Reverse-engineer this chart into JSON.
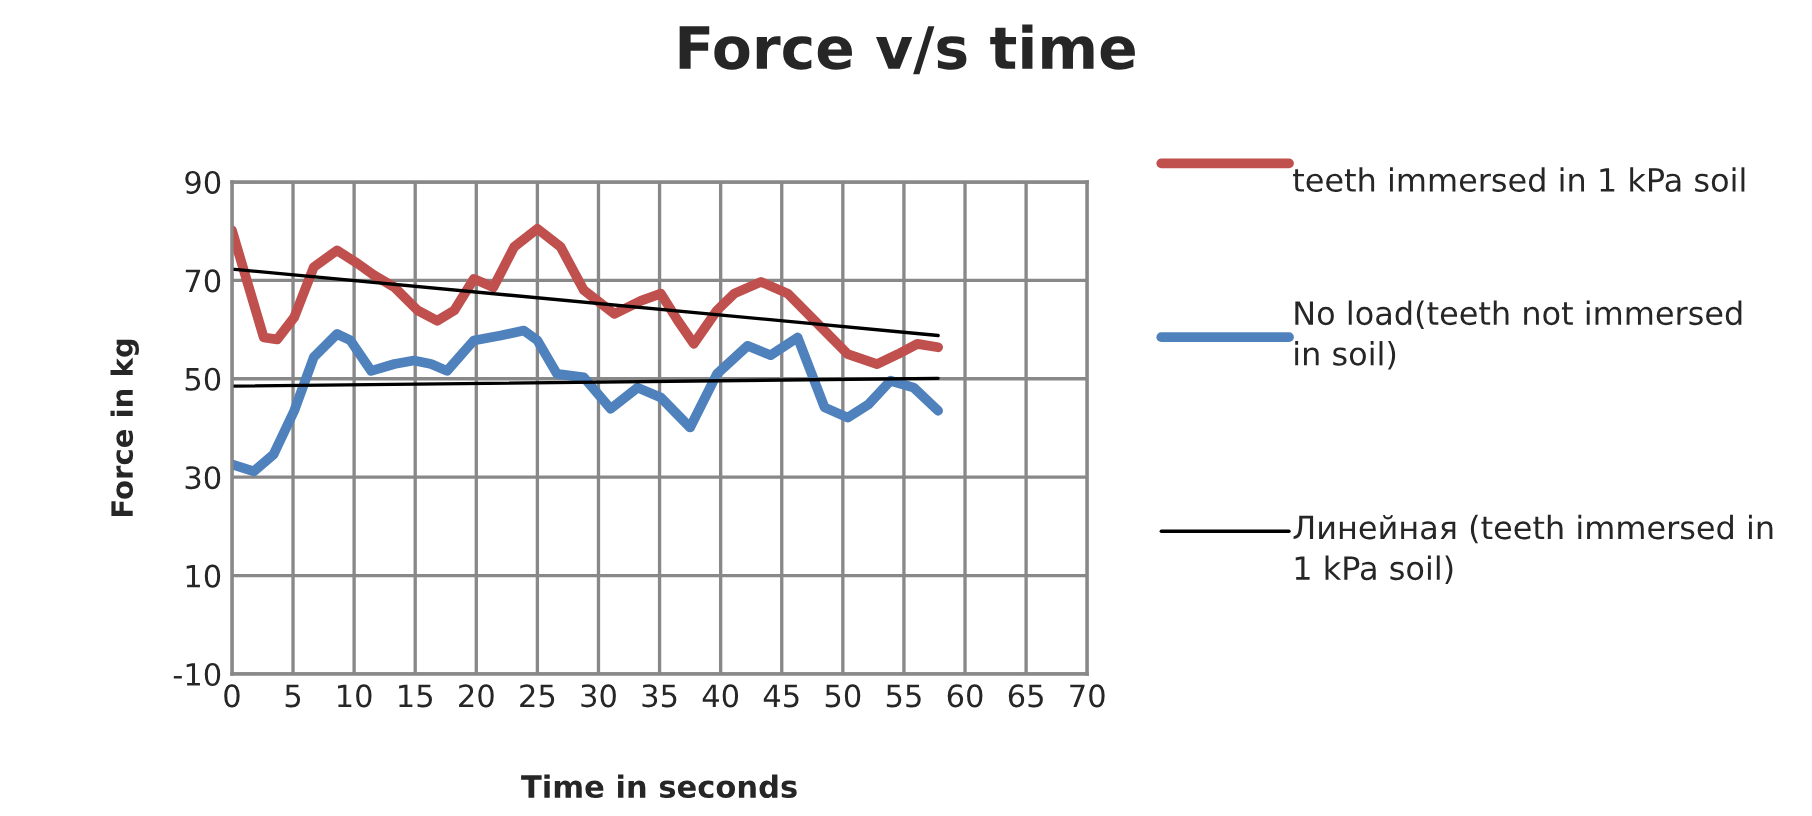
{
  "chart_data": {
    "type": "line",
    "title": "Force v/s time",
    "xlabel": "Time in seconds",
    "ylabel": "Force in kg",
    "xlim": [
      0,
      70
    ],
    "xticks": [
      0,
      5,
      10,
      15,
      20,
      25,
      30,
      35,
      40,
      45,
      50,
      55,
      60,
      65,
      70
    ],
    "ylim": [
      -10,
      90
    ],
    "yticks": [
      -10,
      10,
      30,
      50,
      70,
      90
    ],
    "grid": true,
    "legend": "right",
    "marker": "none",
    "line_style": "solid",
    "series": [
      {
        "name": "teeth immersed in 1 kPa soil",
        "color": "#c0504d",
        "x": [
          0,
          2.6,
          3.7,
          5.1,
          6.7,
          8.6,
          10.3,
          11.6,
          13.3,
          15.2,
          16.8,
          18.2,
          19.8,
          21.4,
          23.1,
          25,
          26.9,
          28.8,
          31.3,
          33.5,
          35.1,
          36.5,
          37.8,
          39.7,
          41.1,
          43.3,
          45.5,
          47.7,
          50.4,
          52.8,
          54.5,
          56.1,
          57.8
        ],
        "values": [
          80.2,
          58.4,
          58,
          62.5,
          72.7,
          76.1,
          73.4,
          71.1,
          68.6,
          63.9,
          61.8,
          63.9,
          70.3,
          68.6,
          76.8,
          80.5,
          76.8,
          68,
          63.2,
          65.9,
          67.3,
          61.8,
          57.1,
          63.9,
          67.3,
          69.7,
          67.3,
          61.8,
          55,
          53,
          55,
          57.1,
          56.4
        ]
      },
      {
        "name": "No load(teeth not immersed in soil)",
        "color": "#4f81bd",
        "x": [
          0,
          1.8,
          3.4,
          5.1,
          6.7,
          8.6,
          9.7,
          11.4,
          13.3,
          14.9,
          16.3,
          17.6,
          19.8,
          22,
          23.9,
          25,
          26.6,
          28.8,
          31,
          33.2,
          35.1,
          37.5,
          39.7,
          42.2,
          44.1,
          46.3,
          48.5,
          50.4,
          52.1,
          53.9,
          55.8,
          57.8
        ],
        "values": [
          32.6,
          31.2,
          34.6,
          43.5,
          54.4,
          59.1,
          57.8,
          51.6,
          53,
          53.7,
          53,
          51.6,
          57.8,
          58.8,
          59.8,
          57.8,
          51,
          50.3,
          43.9,
          48.2,
          46.2,
          40.1,
          51,
          56.7,
          54.8,
          58.4,
          44.2,
          42.1,
          44.8,
          49.6,
          48.2,
          43.5
        ]
      },
      {
        "name": "Линейная (teeth immersed in 1 kPa soil)",
        "color": "#000000",
        "x": [
          0,
          57.8
        ],
        "values": [
          72.3,
          58.8
        ]
      },
      {
        "color": "#000000",
        "x": [
          0,
          57.8
        ],
        "values": [
          48.5,
          50.1
        ]
      }
    ]
  }
}
